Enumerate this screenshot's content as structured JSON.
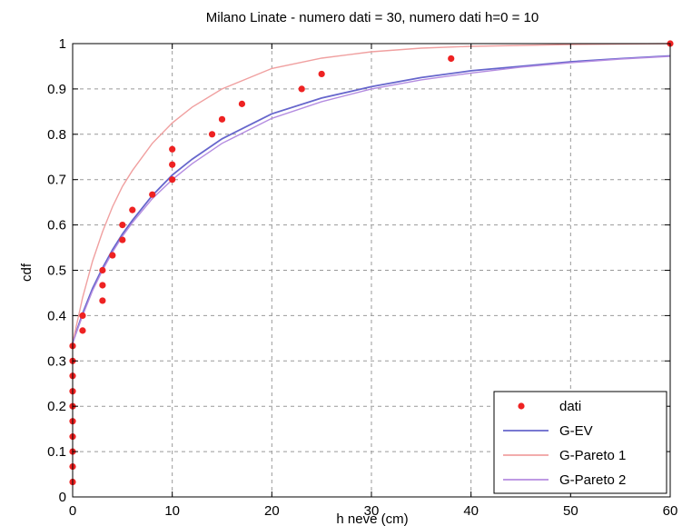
{
  "chart_data": {
    "type": "line",
    "title": "Milano Linate - numero dati = 30, numero dati h=0 = 10",
    "xlabel": "h neve (cm)",
    "ylabel": "cdf",
    "xlim": [
      0,
      60
    ],
    "ylim": [
      0,
      1
    ],
    "xticks": [
      "0",
      "10",
      "20",
      "30",
      "40",
      "50",
      "60"
    ],
    "yticks": [
      "0",
      "0.1",
      "0.2",
      "0.3",
      "0.4",
      "0.5",
      "0.6",
      "0.7",
      "0.8",
      "0.9",
      "1"
    ],
    "grid": true,
    "legend_position": "bottom-right",
    "series": [
      {
        "name": "dati",
        "kind": "scatter",
        "color": "#ee2222",
        "points": [
          [
            0,
            0.033
          ],
          [
            0,
            0.067
          ],
          [
            0,
            0.1
          ],
          [
            0,
            0.133
          ],
          [
            0,
            0.167
          ],
          [
            0,
            0.2
          ],
          [
            0,
            0.233
          ],
          [
            0,
            0.267
          ],
          [
            0,
            0.3
          ],
          [
            0,
            0.333
          ],
          [
            1,
            0.367
          ],
          [
            1,
            0.4
          ],
          [
            3,
            0.433
          ],
          [
            3,
            0.467
          ],
          [
            3,
            0.5
          ],
          [
            4,
            0.533
          ],
          [
            5,
            0.567
          ],
          [
            5,
            0.6
          ],
          [
            6,
            0.633
          ],
          [
            8,
            0.667
          ],
          [
            10,
            0.7
          ],
          [
            10,
            0.733
          ],
          [
            10,
            0.767
          ],
          [
            14,
            0.8
          ],
          [
            15,
            0.833
          ],
          [
            17,
            0.867
          ],
          [
            23,
            0.9
          ],
          [
            25,
            0.933
          ],
          [
            38,
            0.967
          ],
          [
            60,
            1.0
          ]
        ]
      },
      {
        "name": "G-EV",
        "kind": "line",
        "color": "#6666cc",
        "points": [
          [
            0,
            0.34
          ],
          [
            1,
            0.405
          ],
          [
            2,
            0.46
          ],
          [
            3,
            0.505
          ],
          [
            4,
            0.545
          ],
          [
            5,
            0.58
          ],
          [
            6,
            0.61
          ],
          [
            8,
            0.665
          ],
          [
            10,
            0.71
          ],
          [
            12,
            0.745
          ],
          [
            15,
            0.79
          ],
          [
            20,
            0.845
          ],
          [
            25,
            0.88
          ],
          [
            30,
            0.905
          ],
          [
            35,
            0.925
          ],
          [
            40,
            0.94
          ],
          [
            45,
            0.95
          ],
          [
            50,
            0.96
          ],
          [
            55,
            0.967
          ],
          [
            60,
            0.973
          ]
        ]
      },
      {
        "name": "G-Pareto 1",
        "kind": "line",
        "color": "#f0a0a0",
        "points": [
          [
            0,
            0.34
          ],
          [
            1,
            0.44
          ],
          [
            2,
            0.52
          ],
          [
            3,
            0.585
          ],
          [
            4,
            0.64
          ],
          [
            5,
            0.685
          ],
          [
            6,
            0.72
          ],
          [
            8,
            0.78
          ],
          [
            10,
            0.825
          ],
          [
            12,
            0.86
          ],
          [
            15,
            0.9
          ],
          [
            20,
            0.945
          ],
          [
            25,
            0.968
          ],
          [
            30,
            0.982
          ],
          [
            35,
            0.99
          ],
          [
            40,
            0.994
          ],
          [
            50,
            0.998
          ],
          [
            60,
            1.0
          ]
        ]
      },
      {
        "name": "G-Pareto 2",
        "kind": "line",
        "color": "#b48ce0",
        "points": [
          [
            0,
            0.34
          ],
          [
            1,
            0.4
          ],
          [
            2,
            0.455
          ],
          [
            3,
            0.5
          ],
          [
            4,
            0.54
          ],
          [
            5,
            0.575
          ],
          [
            6,
            0.605
          ],
          [
            8,
            0.658
          ],
          [
            10,
            0.7
          ],
          [
            12,
            0.735
          ],
          [
            15,
            0.78
          ],
          [
            20,
            0.835
          ],
          [
            25,
            0.872
          ],
          [
            30,
            0.9
          ],
          [
            35,
            0.92
          ],
          [
            40,
            0.935
          ],
          [
            45,
            0.948
          ],
          [
            50,
            0.958
          ],
          [
            55,
            0.966
          ],
          [
            60,
            0.972
          ]
        ]
      }
    ]
  }
}
